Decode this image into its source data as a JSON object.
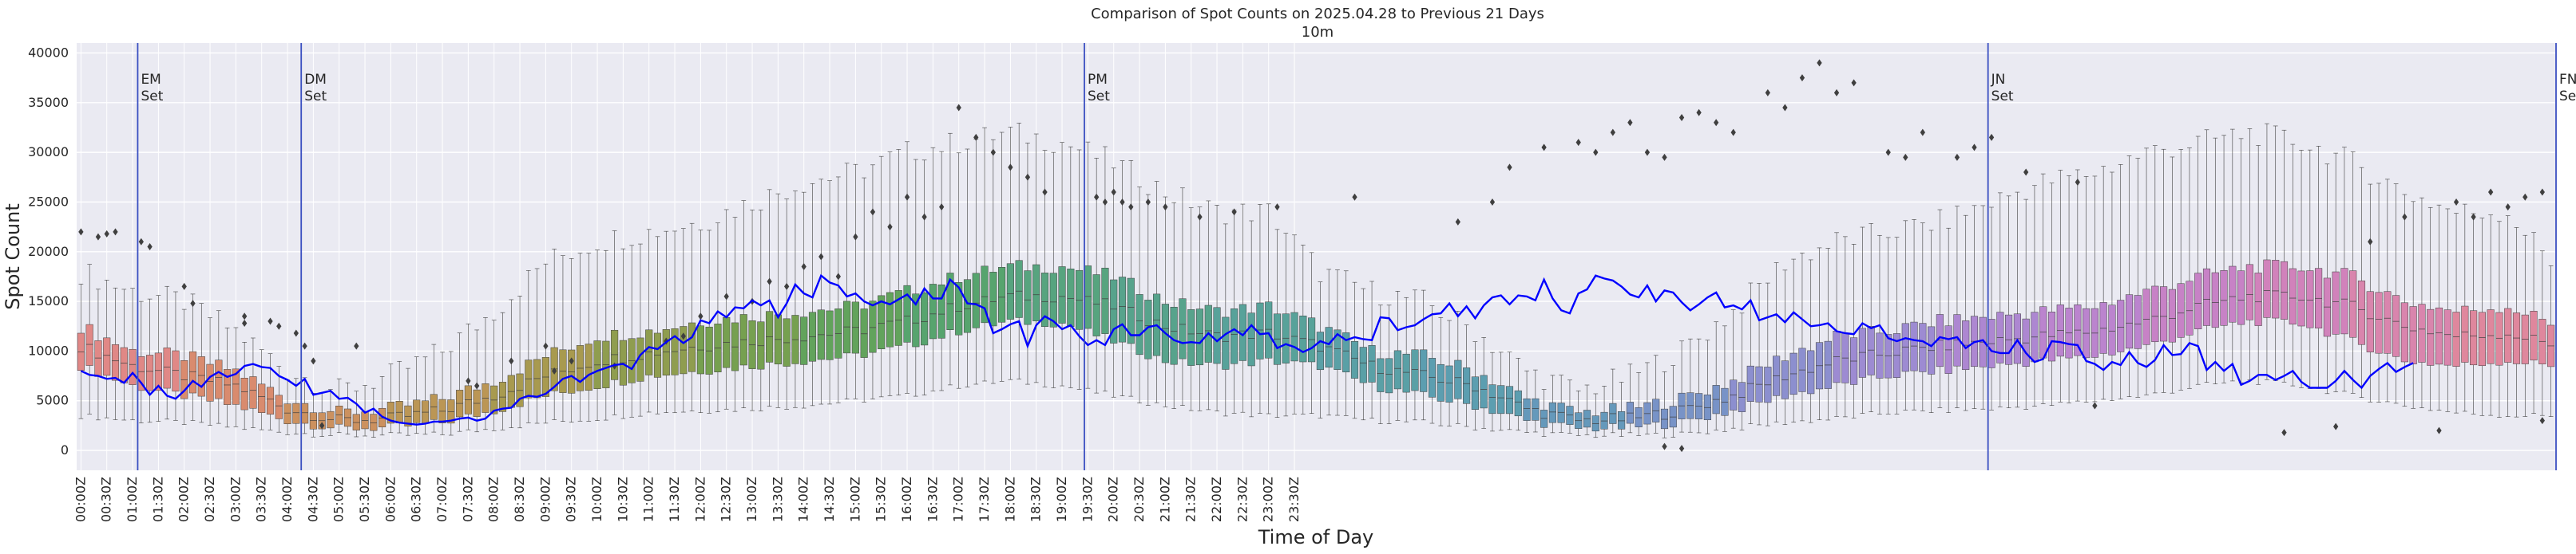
{
  "chart_data": {
    "type": "box",
    "title": "Comparison of Spot Counts on 2025.04.28 to Previous 21 Days",
    "subtitle": "10m",
    "xlabel": "Time of Day",
    "ylabel": "Spot Count",
    "ylim": [
      -2000,
      41000
    ],
    "yticks": [
      0,
      5000,
      10000,
      15000,
      20000,
      25000,
      30000,
      35000,
      40000
    ],
    "yticklabels": [
      "0",
      "5000",
      "10000",
      "15000",
      "20000",
      "25000",
      "30000",
      "35000",
      "40000"
    ],
    "xticklabels": [
      "00:00Z",
      "00:30Z",
      "01:00Z",
      "01:30Z",
      "02:00Z",
      "02:30Z",
      "03:00Z",
      "03:30Z",
      "04:00Z",
      "04:30Z",
      "05:00Z",
      "05:30Z",
      "06:00Z",
      "06:30Z",
      "07:00Z",
      "07:30Z",
      "08:00Z",
      "08:30Z",
      "09:00Z",
      "09:30Z",
      "10:00Z",
      "10:30Z",
      "11:00Z",
      "11:30Z",
      "12:00Z",
      "12:30Z",
      "13:00Z",
      "13:30Z",
      "14:00Z",
      "14:30Z",
      "15:00Z",
      "15:30Z",
      "16:00Z",
      "16:30Z",
      "17:00Z",
      "17:30Z",
      "18:00Z",
      "18:30Z",
      "19:00Z",
      "19:30Z",
      "20:00Z",
      "20:30Z",
      "21:00Z",
      "21:30Z",
      "22:00Z",
      "22:30Z",
      "23:00Z",
      "23:30Z"
    ],
    "bin_minutes": 10,
    "grid": true,
    "hour_medians": [
      10500,
      8500,
      7500,
      6500,
      4200,
      3000,
      3200,
      4000,
      5500,
      7500,
      9000,
      9800,
      10500,
      11000,
      11500,
      12000,
      13000,
      14500,
      15500,
      15500,
      14500,
      12500,
      11500,
      11800
    ],
    "hour_q1": [
      8500,
      6500,
      5500,
      4500,
      3000,
      2200,
      2300,
      2800,
      4000,
      5500,
      6500,
      7500,
      8000,
      8500,
      9000,
      9500,
      10500,
      12000,
      13000,
      12800,
      11000,
      9000,
      8500,
      9000
    ],
    "hour_q3": [
      12500,
      10000,
      9500,
      8000,
      5200,
      3800,
      4200,
      5200,
      7000,
      9500,
      11500,
      12000,
      13000,
      13500,
      14000,
      14500,
      16000,
      17500,
      18500,
      18500,
      17500,
      15000,
      14000,
      14500
    ],
    "hour_wlow": [
      3500,
      3000,
      2800,
      2300,
      1800,
      1500,
      1500,
      1600,
      2200,
      2800,
      3200,
      3800,
      4000,
      4200,
      4500,
      5000,
      5500,
      6500,
      7000,
      6500,
      5500,
      4500,
      3800,
      3500
    ],
    "hour_whigh": [
      18000,
      16000,
      15000,
      12000,
      8000,
      6000,
      7500,
      10000,
      14000,
      19000,
      21000,
      22000,
      23000,
      25000,
      27000,
      28000,
      30000,
      31000,
      32000,
      31000,
      29000,
      26000,
      24000,
      24000
    ],
    "series": [
      {
        "name": "2025.04.28",
        "color": "#0000ff",
        "values": [
          8000,
          7600,
          7500,
          7200,
          7300,
          6800,
          7800,
          6800,
          5600,
          6500,
          5500,
          5200,
          6000,
          7000,
          6400,
          7400,
          7900,
          7400,
          7700,
          8500,
          8700,
          8400,
          8300,
          7500,
          7100,
          6500,
          7200,
          5600,
          5800,
          6000,
          5200,
          5300,
          4700,
          3800,
          4200,
          3400,
          3000,
          2800,
          2700,
          2600,
          2700,
          2900,
          2900,
          3000,
          3200,
          3300,
          3000,
          3200,
          4000,
          4200,
          4300,
          5200,
          5500,
          5400,
          5700,
          6400,
          7200,
          7500,
          6900,
          7600,
          8000,
          8300,
          8600,
          8700,
          8200,
          9600,
          10400,
          10200,
          10900,
          11500,
          10800,
          11400,
          13100,
          12800,
          14000,
          13400,
          14400,
          14300,
          15100,
          14600,
          15100,
          13400,
          14800,
          16700,
          15800,
          15400,
          17600,
          16900,
          16600,
          15500,
          15800,
          15000,
          14600,
          15000,
          14700,
          15200,
          15700,
          14700,
          16300,
          15300,
          15300,
          17200,
          16400,
          14800,
          14700,
          14300,
          11800,
          12200,
          12700,
          13000,
          10500,
          12600,
          13500,
          13000,
          12200,
          12600,
          11500,
          10600,
          11100,
          10600,
          12200,
          12700,
          11600,
          11600,
          12400,
          12600,
          11800,
          11100,
          10800,
          10900,
          10800,
          11800,
          11000,
          11700,
          12200,
          11600,
          12600,
          11700,
          11800,
          10300,
          10700,
          10400,
          9900,
          10300,
          11000,
          10700,
          11700,
          11100,
          11400,
          11200,
          11100,
          13400,
          13300,
          12100,
          12400,
          12600,
          13200,
          13700,
          13800,
          14800,
          13500,
          14500,
          13300,
          14600,
          15400,
          15600,
          14700,
          15600,
          15500,
          15100,
          17200,
          15300,
          14100,
          13800,
          15800,
          16200,
          17600,
          17300,
          17100,
          16500,
          15700,
          15400,
          16600,
          15000,
          16100,
          15900,
          14900,
          14100,
          14700,
          15400,
          15900,
          14400,
          14600,
          14200,
          15100,
          13100,
          13400,
          13700,
          12900,
          13900,
          13200,
          12500,
          12600,
          12800,
          12000,
          11800,
          11700,
          12800,
          12300,
          12600,
          11300,
          11000,
          11300,
          11100,
          11000,
          10500,
          11400,
          11200,
          11400,
          10300,
          10900,
          11100,
          10000,
          9800,
          9800,
          11100,
          9800,
          8900,
          9200,
          11000,
          10900,
          10700,
          10600,
          9000,
          8700,
          8100,
          8900,
          8600,
          9900,
          8800,
          8400,
          9100,
          10600,
          9600,
          9700,
          10800,
          10500,
          8100,
          8900,
          8000,
          8700,
          6600,
          7000,
          7600,
          7600,
          7100,
          7500,
          8000,
          6900,
          6300,
          6300,
          6300,
          7000,
          8000,
          7100,
          6300,
          7500,
          8200,
          8800,
          7900,
          8400,
          8800
        ]
      }
    ],
    "annotations": [
      {
        "label": "EM",
        "sub": "Set",
        "slot": 7
      },
      {
        "label": "DM",
        "sub": "Set",
        "slot": 26
      },
      {
        "label": "PM",
        "sub": "Set",
        "slot": 117
      },
      {
        "label": "JN",
        "sub": "Set",
        "slot": 222
      },
      {
        "label": "FN",
        "sub": "Set",
        "slot": 288
      }
    ],
    "outliers": [
      {
        "slot": 0,
        "value": 22000
      },
      {
        "slot": 2,
        "value": 21500
      },
      {
        "slot": 3,
        "value": 21800
      },
      {
        "slot": 4,
        "value": 22000
      },
      {
        "slot": 7,
        "value": 21000
      },
      {
        "slot": 8,
        "value": 20500
      },
      {
        "slot": 12,
        "value": 16500
      },
      {
        "slot": 13,
        "value": 14800
      },
      {
        "slot": 19,
        "value": 13500
      },
      {
        "slot": 19,
        "value": 12800
      },
      {
        "slot": 22,
        "value": 13000
      },
      {
        "slot": 23,
        "value": 12500
      },
      {
        "slot": 25,
        "value": 11800
      },
      {
        "slot": 26,
        "value": 10500
      },
      {
        "slot": 27,
        "value": 9000
      },
      {
        "slot": 28,
        "value": 2500
      },
      {
        "slot": 32,
        "value": 10500
      },
      {
        "slot": 45,
        "value": 7000
      },
      {
        "slot": 46,
        "value": 6500
      },
      {
        "slot": 50,
        "value": 9000
      },
      {
        "slot": 54,
        "value": 10500
      },
      {
        "slot": 55,
        "value": 8000
      },
      {
        "slot": 57,
        "value": 9000
      },
      {
        "slot": 62,
        "value": 8500
      },
      {
        "slot": 68,
        "value": 11000
      },
      {
        "slot": 70,
        "value": 11500
      },
      {
        "slot": 72,
        "value": 13500
      },
      {
        "slot": 75,
        "value": 15500
      },
      {
        "slot": 78,
        "value": 15000
      },
      {
        "slot": 80,
        "value": 17000
      },
      {
        "slot": 82,
        "value": 16500
      },
      {
        "slot": 84,
        "value": 18500
      },
      {
        "slot": 86,
        "value": 19500
      },
      {
        "slot": 88,
        "value": 17500
      },
      {
        "slot": 90,
        "value": 21500
      },
      {
        "slot": 92,
        "value": 24000
      },
      {
        "slot": 94,
        "value": 22500
      },
      {
        "slot": 96,
        "value": 25500
      },
      {
        "slot": 98,
        "value": 23500
      },
      {
        "slot": 100,
        "value": 24500
      },
      {
        "slot": 102,
        "value": 34500
      },
      {
        "slot": 104,
        "value": 31500
      },
      {
        "slot": 106,
        "value": 30000
      },
      {
        "slot": 108,
        "value": 28500
      },
      {
        "slot": 110,
        "value": 27500
      },
      {
        "slot": 112,
        "value": 26000
      },
      {
        "slot": 118,
        "value": 25500
      },
      {
        "slot": 119,
        "value": 25000
      },
      {
        "slot": 120,
        "value": 26000
      },
      {
        "slot": 121,
        "value": 25000
      },
      {
        "slot": 122,
        "value": 24500
      },
      {
        "slot": 124,
        "value": 25000
      },
      {
        "slot": 126,
        "value": 24500
      },
      {
        "slot": 130,
        "value": 23500
      },
      {
        "slot": 134,
        "value": 24000
      },
      {
        "slot": 139,
        "value": 24500
      },
      {
        "slot": 148,
        "value": 25500
      },
      {
        "slot": 160,
        "value": 23000
      },
      {
        "slot": 164,
        "value": 25000
      },
      {
        "slot": 166,
        "value": 28500
      },
      {
        "slot": 170,
        "value": 30500
      },
      {
        "slot": 174,
        "value": 31000
      },
      {
        "slot": 176,
        "value": 30000
      },
      {
        "slot": 178,
        "value": 32000
      },
      {
        "slot": 180,
        "value": 33000
      },
      {
        "slot": 182,
        "value": 30000
      },
      {
        "slot": 184,
        "value": 29500
      },
      {
        "slot": 186,
        "value": 33500
      },
      {
        "slot": 188,
        "value": 34000
      },
      {
        "slot": 190,
        "value": 33000
      },
      {
        "slot": 192,
        "value": 32000
      },
      {
        "slot": 184,
        "value": 400
      },
      {
        "slot": 186,
        "value": 200
      },
      {
        "slot": 196,
        "value": 36000
      },
      {
        "slot": 198,
        "value": 34500
      },
      {
        "slot": 200,
        "value": 37500
      },
      {
        "slot": 202,
        "value": 39000
      },
      {
        "slot": 204,
        "value": 36000
      },
      {
        "slot": 206,
        "value": 37000
      },
      {
        "slot": 210,
        "value": 30000
      },
      {
        "slot": 212,
        "value": 29500
      },
      {
        "slot": 214,
        "value": 32000
      },
      {
        "slot": 218,
        "value": 29500
      },
      {
        "slot": 220,
        "value": 30500
      },
      {
        "slot": 222,
        "value": 31500
      },
      {
        "slot": 226,
        "value": 28000
      },
      {
        "slot": 232,
        "value": 27000
      },
      {
        "slot": 234,
        "value": 4500
      },
      {
        "slot": 256,
        "value": 1800
      },
      {
        "slot": 262,
        "value": 2400
      },
      {
        "slot": 266,
        "value": 21000
      },
      {
        "slot": 270,
        "value": 23500
      },
      {
        "slot": 274,
        "value": 2000
      },
      {
        "slot": 276,
        "value": 25000
      },
      {
        "slot": 278,
        "value": 23500
      },
      {
        "slot": 280,
        "value": 26000
      },
      {
        "slot": 282,
        "value": 24500
      },
      {
        "slot": 284,
        "value": 25500
      },
      {
        "slot": 286,
        "value": 26000
      },
      {
        "slot": 286,
        "value": 3000
      }
    ]
  }
}
